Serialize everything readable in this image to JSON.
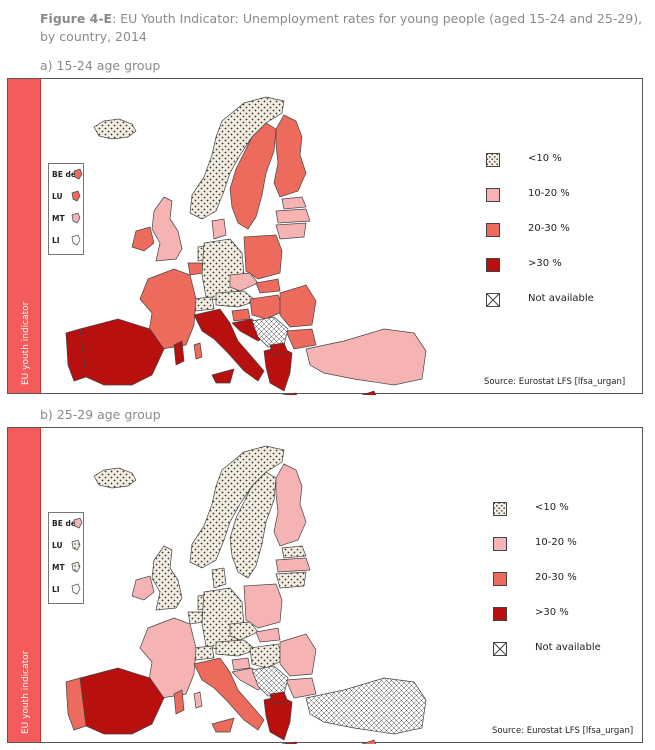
{
  "figure": {
    "title_bold": "Figure 4-E",
    "title_rest": ": EU Youth Indicator: Unemployment rates for young people (aged 15-24 and 25-29), by country, 2014"
  },
  "colors": {
    "lt10": "#f3ede1",
    "c10_20": "#f5b3b3",
    "c20_30": "#ec6b5c",
    "gt30": "#b80f0f",
    "na": "#ffffff",
    "side_bar": "#f45b5b"
  },
  "legend": [
    {
      "key": "lt10",
      "label": "<10 %"
    },
    {
      "key": "c10_20",
      "label": "10-20 %"
    },
    {
      "key": "c20_30",
      "label": "20-30 %"
    },
    {
      "key": "gt30",
      "label": ">30 %"
    },
    {
      "key": "na",
      "label": "Not available"
    }
  ],
  "small_states": [
    "BE de",
    "LU",
    "MT",
    "LI"
  ],
  "panels": [
    {
      "label": "a) 15-24 age group",
      "side_label": "EU youth indicator",
      "source": "Source: Eurostat LFS [lfsa_urgan]",
      "small_classes": [
        "c20_30",
        "c20_30",
        "c10_20",
        "na"
      ],
      "classes": {
        "IS": "lt10",
        "NO": "lt10",
        "SE": "c20_30",
        "FI": "c20_30",
        "EE": "c10_20",
        "LV": "c10_20",
        "LT": "c10_20",
        "DK": "c10_20",
        "UK": "c10_20",
        "IE": "c20_30",
        "NL": "lt10",
        "BE": "c20_30",
        "DE": "lt10",
        "PL": "c20_30",
        "CZ": "c10_20",
        "SK": "c20_30",
        "AT": "lt10",
        "CH": "lt10",
        "FR": "c20_30",
        "HU": "c20_30",
        "SI": "c20_30",
        "HR": "gt30",
        "RO": "c20_30",
        "BG": "c20_30",
        "IT": "gt30",
        "ES": "gt30",
        "PT": "gt30",
        "GR": "gt30",
        "TR": "c10_20",
        "BALKANS": "na",
        "MK": "gt30",
        "CY": "gt30"
      }
    },
    {
      "label": "b) 25-29 age group",
      "side_label": "EU youth indicator",
      "source": "Source: Eurostat LFS [lfsa_urgan]",
      "small_classes": [
        "c10_20",
        "lt10",
        "lt10",
        "na"
      ],
      "classes": {
        "IS": "lt10",
        "NO": "lt10",
        "SE": "lt10",
        "FI": "c10_20",
        "EE": "lt10",
        "LV": "c10_20",
        "LT": "lt10",
        "DK": "lt10",
        "UK": "lt10",
        "IE": "c10_20",
        "NL": "lt10",
        "BE": "lt10",
        "DE": "lt10",
        "PL": "c10_20",
        "CZ": "lt10",
        "SK": "c10_20",
        "AT": "lt10",
        "CH": "lt10",
        "FR": "c10_20",
        "HU": "lt10",
        "SI": "c10_20",
        "HR": "c10_20",
        "RO": "c10_20",
        "BG": "c10_20",
        "IT": "c20_30",
        "ES": "gt30",
        "PT": "c20_30",
        "GR": "gt30",
        "TR": "na",
        "BALKANS": "na",
        "MK": "gt30",
        "CY": "c20_30"
      }
    }
  ]
}
